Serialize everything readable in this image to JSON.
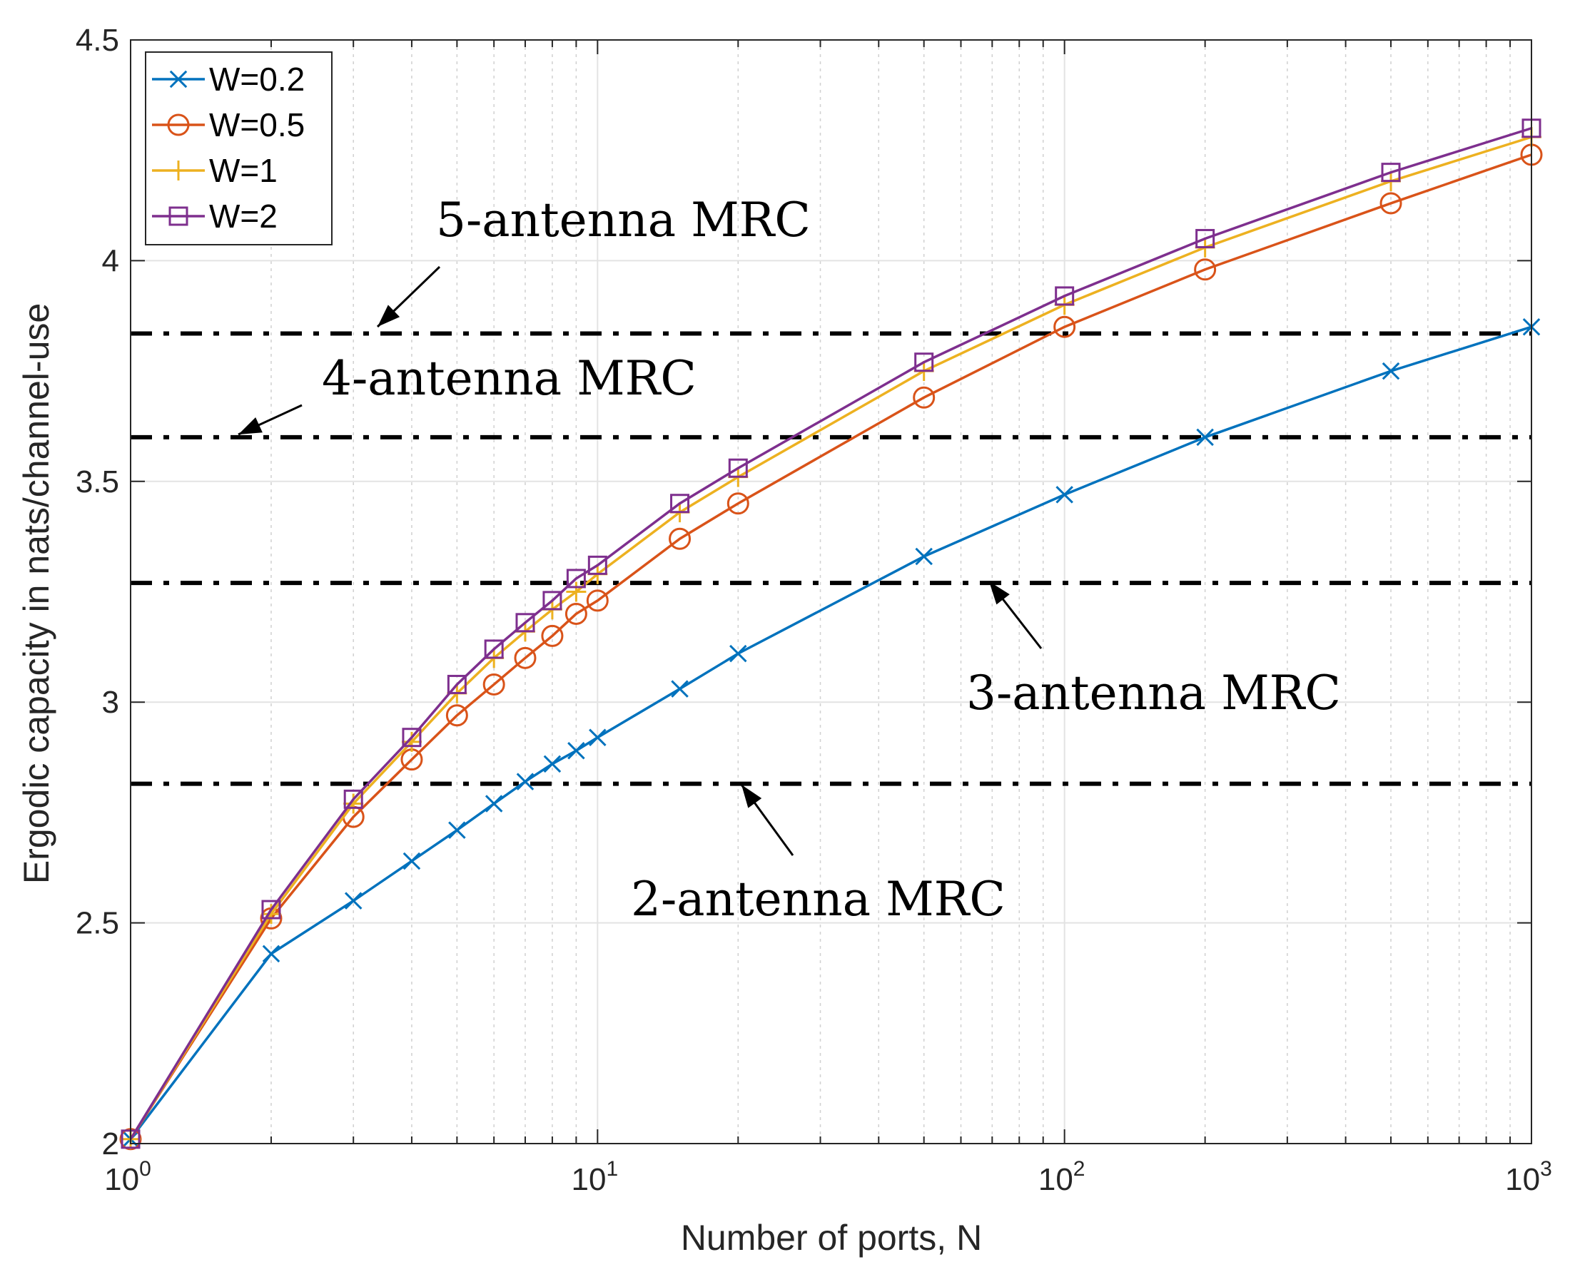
{
  "chart_data": {
    "type": "line",
    "title": "",
    "xlabel": "Number of ports, N",
    "ylabel": "Ergodic capacity in nats/channel-use",
    "xscale": "log",
    "xlim": [
      1,
      1000
    ],
    "ylim": [
      2,
      4.5
    ],
    "grid": true,
    "legend_placement": "top-left",
    "xticks": [
      1,
      10,
      100,
      1000
    ],
    "xtick_labels": [
      {
        "base": "10",
        "exp": "0"
      },
      {
        "base": "10",
        "exp": "1"
      },
      {
        "base": "10",
        "exp": "2"
      },
      {
        "base": "10",
        "exp": "3"
      }
    ],
    "yticks": [
      2,
      2.5,
      3,
      3.5,
      4,
      4.5
    ],
    "ytick_labels": [
      "2",
      "2.5",
      "3",
      "3.5",
      "4",
      "4.5"
    ],
    "x": [
      1,
      2,
      3,
      4,
      5,
      6,
      7,
      8,
      9,
      10,
      15,
      20,
      50,
      100,
      200,
      500,
      1000
    ],
    "series": [
      {
        "name": "W=0.2",
        "color": "#0072BD",
        "marker": "x",
        "values": [
          2.01,
          2.43,
          2.55,
          2.64,
          2.71,
          2.77,
          2.82,
          2.86,
          2.89,
          2.92,
          3.03,
          3.11,
          3.33,
          3.47,
          3.6,
          3.75,
          3.85
        ]
      },
      {
        "name": "W=0.5",
        "color": "#D95319",
        "marker": "circle",
        "values": [
          2.01,
          2.51,
          2.74,
          2.87,
          2.97,
          3.04,
          3.1,
          3.15,
          3.2,
          3.23,
          3.37,
          3.45,
          3.69,
          3.85,
          3.98,
          4.13,
          4.24
        ]
      },
      {
        "name": "W=1",
        "color": "#EDB120",
        "marker": "plus",
        "values": [
          2.01,
          2.52,
          2.77,
          2.91,
          3.02,
          3.1,
          3.16,
          3.21,
          3.25,
          3.29,
          3.43,
          3.51,
          3.75,
          3.9,
          4.03,
          4.18,
          4.28
        ]
      },
      {
        "name": "W=2",
        "color": "#7E2F8E",
        "marker": "square",
        "values": [
          2.01,
          2.53,
          2.78,
          2.92,
          3.04,
          3.12,
          3.18,
          3.23,
          3.28,
          3.31,
          3.45,
          3.53,
          3.77,
          3.92,
          4.05,
          4.2,
          4.3
        ]
      }
    ],
    "reference_lines": [
      {
        "label": "5-antenna MRC",
        "y": 3.835,
        "style": "dash-dot",
        "color": "#000000"
      },
      {
        "label": "4-antenna MRC",
        "y": 3.6,
        "style": "dash-dot",
        "color": "#000000"
      },
      {
        "label": "3-antenna MRC",
        "y": 3.27,
        "style": "dash-dot",
        "color": "#000000"
      },
      {
        "label": "2-antenna MRC",
        "y": 2.815,
        "style": "dash-dot",
        "color": "#000000"
      }
    ]
  }
}
